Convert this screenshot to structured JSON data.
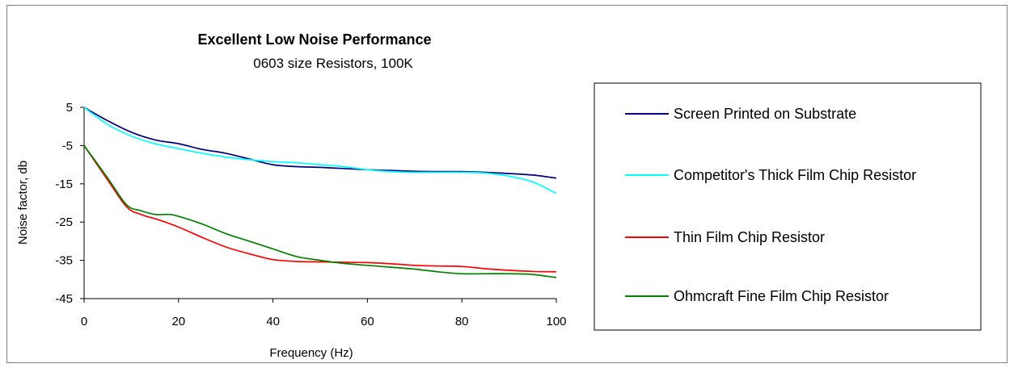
{
  "chart_data": {
    "type": "line",
    "title": "Excellent Low Noise Performance",
    "subtitle": "0603 size Resistors, 100K",
    "xlabel": "Frequency (Hz)",
    "ylabel": "Noise factor, db",
    "xlim": [
      0,
      100
    ],
    "ylim": [
      -45,
      5
    ],
    "x_ticks": [
      "0",
      "20",
      "40",
      "60",
      "80",
      "100"
    ],
    "y_ticks": [
      "5",
      "-5",
      "-15",
      "-25",
      "-35",
      "-45"
    ],
    "grid": false,
    "legend_position": "right",
    "series": [
      {
        "name": "Screen Printed on Substrate",
        "color": "#000080",
        "points": [
          [
            0,
            5
          ],
          [
            5,
            1.5
          ],
          [
            10,
            -1.5
          ],
          [
            15,
            -3.5
          ],
          [
            20,
            -4.5
          ],
          [
            25,
            -6
          ],
          [
            30,
            -7
          ],
          [
            35,
            -8.5
          ],
          [
            40,
            -10
          ],
          [
            45,
            -10.5
          ],
          [
            50,
            -10.7
          ],
          [
            55,
            -11
          ],
          [
            60,
            -11.3
          ],
          [
            65,
            -11.5
          ],
          [
            70,
            -11.7
          ],
          [
            75,
            -11.8
          ],
          [
            80,
            -11.8
          ],
          [
            85,
            -12
          ],
          [
            90,
            -12.3
          ],
          [
            95,
            -12.7
          ],
          [
            100,
            -13.5
          ]
        ]
      },
      {
        "name": "Competitor's Thick Film Chip Resistor",
        "color": "#00FFFF",
        "points": [
          [
            0,
            5
          ],
          [
            5,
            0.5
          ],
          [
            10,
            -2.5
          ],
          [
            15,
            -4.5
          ],
          [
            20,
            -5.8
          ],
          [
            25,
            -7
          ],
          [
            30,
            -8
          ],
          [
            35,
            -8.7
          ],
          [
            40,
            -9.2
          ],
          [
            45,
            -9.5
          ],
          [
            50,
            -10
          ],
          [
            55,
            -10.5
          ],
          [
            60,
            -11.3
          ],
          [
            65,
            -11.8
          ],
          [
            70,
            -12
          ],
          [
            75,
            -12
          ],
          [
            80,
            -12
          ],
          [
            85,
            -12.2
          ],
          [
            90,
            -13
          ],
          [
            95,
            -14.5
          ],
          [
            100,
            -17.5
          ]
        ]
      },
      {
        "name": "Thin Film Chip Resistor",
        "color": "#FF0000",
        "points": [
          [
            0,
            -5
          ],
          [
            5,
            -14
          ],
          [
            9,
            -21
          ],
          [
            12,
            -23
          ],
          [
            16,
            -24.5
          ],
          [
            20,
            -26.3
          ],
          [
            25,
            -29
          ],
          [
            30,
            -31.5
          ],
          [
            35,
            -33.3
          ],
          [
            40,
            -34.8
          ],
          [
            45,
            -35.3
          ],
          [
            50,
            -35.4
          ],
          [
            55,
            -35.5
          ],
          [
            60,
            -35.6
          ],
          [
            65,
            -35.9
          ],
          [
            70,
            -36.3
          ],
          [
            75,
            -36.5
          ],
          [
            80,
            -36.6
          ],
          [
            85,
            -37.2
          ],
          [
            90,
            -37.6
          ],
          [
            95,
            -37.9
          ],
          [
            100,
            -38
          ]
        ]
      },
      {
        "name": "Ohmcraft Fine Film Chip Resistor",
        "color": "#008000",
        "points": [
          [
            0,
            -5
          ],
          [
            5,
            -13.5
          ],
          [
            9,
            -20.5
          ],
          [
            12,
            -22
          ],
          [
            15,
            -23
          ],
          [
            18,
            -23
          ],
          [
            20,
            -23.5
          ],
          [
            25,
            -25.5
          ],
          [
            30,
            -28
          ],
          [
            35,
            -30
          ],
          [
            40,
            -32
          ],
          [
            45,
            -34
          ],
          [
            50,
            -35
          ],
          [
            55,
            -35.8
          ],
          [
            60,
            -36.3
          ],
          [
            65,
            -36.8
          ],
          [
            70,
            -37.3
          ],
          [
            75,
            -38
          ],
          [
            80,
            -38.5
          ],
          [
            85,
            -38.5
          ],
          [
            90,
            -38.5
          ],
          [
            95,
            -38.7
          ],
          [
            100,
            -39.5
          ]
        ]
      }
    ]
  }
}
